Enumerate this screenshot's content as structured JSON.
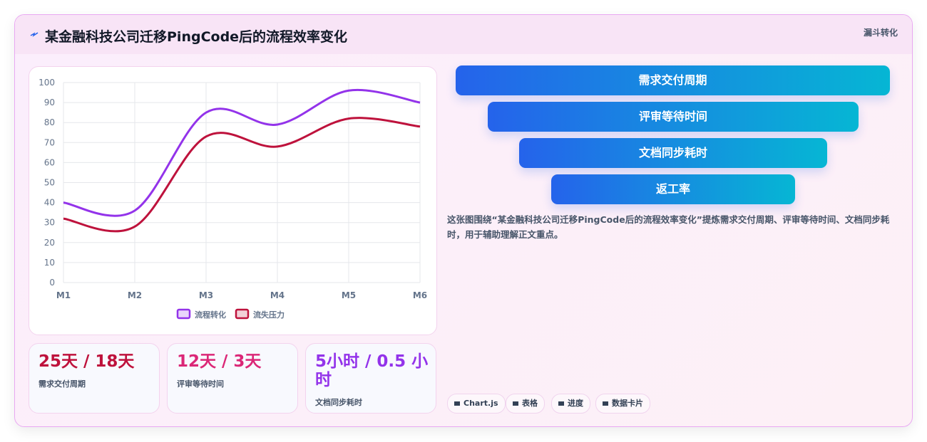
{
  "header": {
    "title": "某金融科技公司迁移PingCode后的流程效率变化",
    "badge": "漏斗转化"
  },
  "chart_data": {
    "type": "line",
    "categories": [
      "M1",
      "M2",
      "M3",
      "M4",
      "M5",
      "M6"
    ],
    "series": [
      {
        "name": "流程转化",
        "color": "#9333ea",
        "values": [
          40,
          36,
          85,
          79,
          96,
          90
        ]
      },
      {
        "name": "流失压力",
        "color": "#be123c",
        "values": [
          32,
          28,
          73,
          68,
          82,
          78
        ]
      }
    ],
    "ylim": [
      0,
      100
    ],
    "yticks": [
      0,
      10,
      20,
      30,
      40,
      50,
      60,
      70,
      80,
      90,
      100
    ],
    "grid": true,
    "legend": "bottom"
  },
  "stats": [
    {
      "value": "25天 / 18天",
      "label": "需求交付周期",
      "color": "#be123c"
    },
    {
      "value": "12天 / 3天",
      "label": "评审等待时间",
      "color": "#db2777"
    },
    {
      "value": "5小时 / 0.5 小时",
      "label": "文档同步耗时",
      "color": "#9333ea"
    }
  ],
  "funnel": [
    "需求交付周期",
    "评审等待时间",
    "文档同步耗时",
    "返工率"
  ],
  "description": "这张图围绕“某金融科技公司迁移PingCode后的流程效率变化”提炼需求交付周期、评审等待时间、文档同步耗时，用于辅助理解正文重点。",
  "tags": [
    "Chart.js",
    "表格",
    "进度",
    "数据卡片"
  ]
}
